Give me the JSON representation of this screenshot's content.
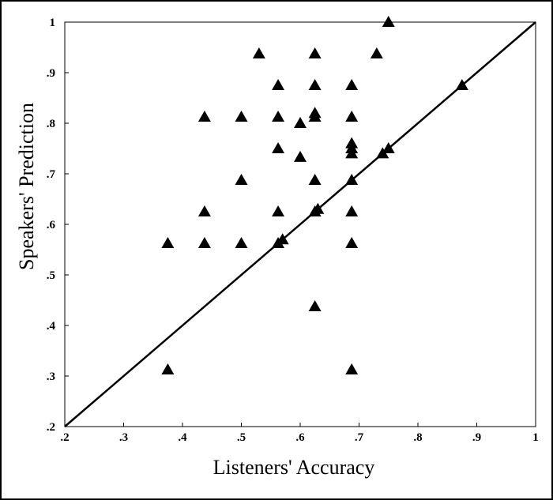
{
  "chart_data": {
    "type": "scatter",
    "x_label": "Listeners' Accuracy",
    "y_label": "Speakers' Prediction",
    "x": [
      0.375,
      0.375,
      0.4375,
      0.4375,
      0.4375,
      0.5,
      0.5,
      0.5,
      0.53,
      0.5625,
      0.5625,
      0.5625,
      0.5625,
      0.5625,
      0.57,
      0.6,
      0.6,
      0.625,
      0.625,
      0.625,
      0.625,
      0.625,
      0.625,
      0.63,
      0.625,
      0.6875,
      0.6875,
      0.6875,
      0.6875,
      0.6875,
      0.6875,
      0.6875,
      0.6875,
      0.6875,
      0.73,
      0.75,
      0.74,
      0.75,
      0.875
    ],
    "y": [
      0.3125,
      0.5625,
      0.8125,
      0.625,
      0.5625,
      0.8125,
      0.6875,
      0.5625,
      0.9375,
      0.875,
      0.8125,
      0.75,
      0.625,
      0.5625,
      0.57,
      0.8,
      0.733,
      0.9375,
      0.875,
      0.82,
      0.8125,
      0.6875,
      0.625,
      0.63,
      0.4375,
      0.875,
      0.8125,
      0.76,
      0.75,
      0.74,
      0.6875,
      0.625,
      0.5625,
      0.3125,
      0.9375,
      1.0,
      0.74,
      0.75,
      0.875
    ],
    "color": "#000000",
    "xlim": [
      0.2,
      1
    ],
    "ylim": [
      0.2,
      1
    ],
    "xticks": [
      {
        "value": 0.2,
        "label": ".2"
      },
      {
        "value": 0.3,
        "label": ".3"
      },
      {
        "value": 0.4,
        "label": ".4"
      },
      {
        "value": 0.5,
        "label": ".5"
      },
      {
        "value": 0.6,
        "label": ".6"
      },
      {
        "value": 0.7,
        "label": ".7"
      },
      {
        "value": 0.8,
        "label": ".8"
      },
      {
        "value": 0.9,
        "label": ".9"
      },
      1
    ],
    "yticks": [
      {
        "value": 0.2,
        "label": ".2"
      },
      {
        "value": 0.3,
        "label": ".3"
      },
      {
        "value": 0.4,
        "label": ".4"
      },
      {
        "value": 0.5,
        "label": ".5"
      },
      {
        "value": 0.6,
        "label": ".6"
      },
      {
        "value": 0.7,
        "label": ".7"
      },
      {
        "value": 0.8,
        "label": ".8"
      },
      {
        "value": 0.9,
        "label": ".9"
      },
      1
    ],
    "identity_line": true
  }
}
